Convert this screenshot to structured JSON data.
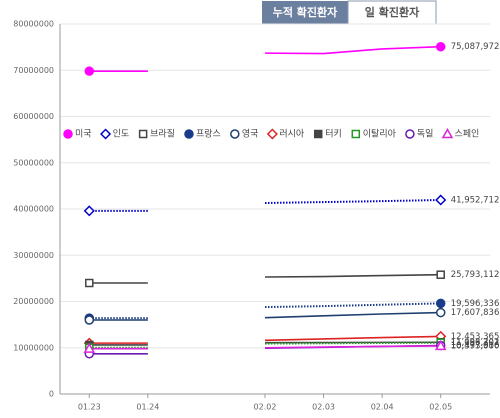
{
  "chart_data": {
    "type": "line",
    "tabs": [
      "누적 확진환자",
      "일 확진환자"
    ],
    "active_tab": 0,
    "categories": [
      "01.23",
      "01.24",
      null,
      "02.02",
      "02.03",
      "02.04",
      "02.05"
    ],
    "ylim": [
      0,
      80000000
    ],
    "yticks": [
      0,
      10000000,
      20000000,
      30000000,
      40000000,
      50000000,
      60000000,
      70000000,
      80000000
    ],
    "grid": true,
    "series": [
      {
        "name": "미국",
        "color": "#ff00ff",
        "marker": "circle",
        "filled": true,
        "dash": false,
        "values": [
          69800000,
          69800000,
          null,
          73700000,
          73600000,
          74600000,
          75087972
        ],
        "value_labels": [
          null,
          null,
          null,
          null,
          null,
          null,
          "75,087,972"
        ]
      },
      {
        "name": "인도",
        "color": "#0000cc",
        "marker": "diamond",
        "filled": false,
        "dash": true,
        "values": [
          39600000,
          39600000,
          null,
          41300000,
          41500000,
          41700000,
          41952712
        ],
        "value_labels": [
          null,
          null,
          null,
          null,
          null,
          null,
          "41,952,712"
        ]
      },
      {
        "name": "브라질",
        "color": "#444444",
        "marker": "square",
        "filled": false,
        "dash": false,
        "values": [
          24000000,
          24000000,
          null,
          25300000,
          25400000,
          25600000,
          25793112
        ],
        "value_labels": [
          null,
          null,
          null,
          null,
          null,
          null,
          "25,793,112"
        ]
      },
      {
        "name": "프랑스",
        "color": "#1a3a8a",
        "marker": "circle",
        "filled": true,
        "dash": true,
        "values": [
          16400000,
          16400000,
          null,
          18800000,
          19000000,
          19300000,
          19596336
        ],
        "value_labels": [
          null,
          null,
          null,
          null,
          null,
          null,
          "19,596,336"
        ]
      },
      {
        "name": "영국",
        "color": "#1f3f6f",
        "marker": "circle",
        "filled": false,
        "dash": false,
        "values": [
          16000000,
          16000000,
          null,
          16500000,
          16900000,
          17300000,
          17607836
        ],
        "value_labels": [
          null,
          null,
          null,
          null,
          null,
          null,
          "17,607,836"
        ]
      },
      {
        "name": "러시아",
        "color": "#dd2222",
        "marker": "diamond",
        "filled": false,
        "dash": false,
        "values": [
          11000000,
          11000000,
          null,
          11600000,
          11900000,
          12200000,
          12453365
        ],
        "value_labels": [
          null,
          null,
          null,
          null,
          null,
          null,
          "12,453,365"
        ]
      },
      {
        "name": "터키",
        "color": "#444444",
        "marker": "square",
        "filled": true,
        "dash": false,
        "values": [
          10600000,
          10600000,
          null,
          11100000,
          11130000,
          11160000,
          11186302
        ],
        "value_labels": [
          null,
          null,
          null,
          null,
          null,
          null,
          "11,186,302"
        ]
      },
      {
        "name": "이탈리아",
        "color": "#229922",
        "marker": "square",
        "filled": false,
        "dash": true,
        "values": [
          10000000,
          10000000,
          null,
          10900000,
          10960000,
          11030000,
          11093701
        ],
        "value_labels": [
          null,
          null,
          null,
          null,
          null,
          null,
          "11,093,701"
        ]
      },
      {
        "name": "독일",
        "color": "#6a1bb0",
        "marker": "circle",
        "filled": false,
        "dash": false,
        "values": [
          8700000,
          8700000,
          null,
          9900000,
          10100000,
          10300000,
          10477916
        ],
        "value_labels": [
          null,
          null,
          null,
          null,
          null,
          null,
          "10,477,916"
        ]
      },
      {
        "name": "스페인",
        "color": "#dd22dd",
        "marker": "triangle",
        "filled": false,
        "dash": false,
        "values": [
          9800000,
          9800000,
          null,
          10000000,
          10150000,
          10280000,
          10393000
        ],
        "value_labels": [
          null,
          null,
          null,
          null,
          null,
          null,
          "10,393,000"
        ]
      }
    ]
  }
}
